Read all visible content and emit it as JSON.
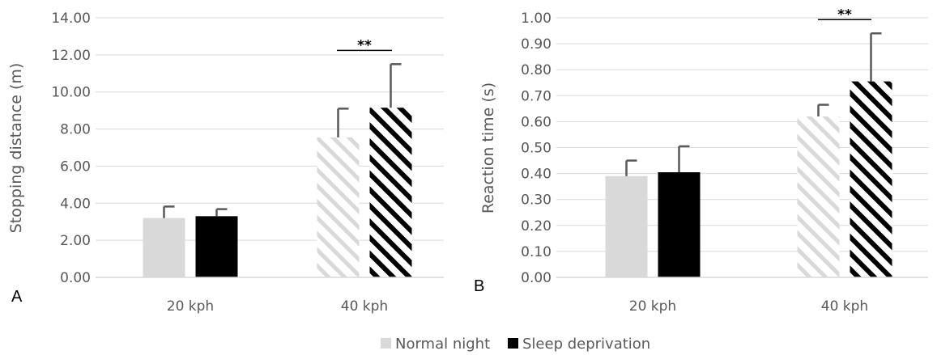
{
  "colors": {
    "normal": "#d9d9d9",
    "sleep": "#000000",
    "grid": "#d9d9d9",
    "error": "#595959"
  },
  "legend": {
    "position": "bottom",
    "items": [
      {
        "label": "Normal night",
        "color": "#d9d9d9"
      },
      {
        "label": "Sleep deprivation",
        "color": "#000000"
      }
    ]
  },
  "chart_data": [
    {
      "type": "bar",
      "panel_label": "A",
      "ylabel": "Stopping distance (m)",
      "categories": [
        "20 kph",
        "40 kph"
      ],
      "ylim": [
        0,
        14
      ],
      "ytick_step": 2,
      "ytick_decimals": 2,
      "grid": true,
      "series": [
        {
          "name": "Normal night",
          "values": [
            3.2,
            7.55
          ],
          "errors": [
            0.62,
            1.55
          ],
          "hatched": [
            false,
            true
          ]
        },
        {
          "name": "Sleep deprivation",
          "values": [
            3.3,
            9.15
          ],
          "errors": [
            0.38,
            2.35
          ],
          "hatched": [
            false,
            true
          ]
        }
      ],
      "annotations": [
        {
          "text": "**",
          "category_index": 1
        }
      ]
    },
    {
      "type": "bar",
      "panel_label": "B",
      "ylabel": "Reaction time (s)",
      "categories": [
        "20 kph",
        "40 kph"
      ],
      "ylim": [
        0,
        1
      ],
      "ytick_step": 0.1,
      "ytick_decimals": 2,
      "grid": true,
      "series": [
        {
          "name": "Normal night",
          "values": [
            0.39,
            0.62
          ],
          "errors": [
            0.06,
            0.045
          ],
          "hatched": [
            false,
            true
          ]
        },
        {
          "name": "Sleep deprivation",
          "values": [
            0.405,
            0.755
          ],
          "errors": [
            0.1,
            0.185
          ],
          "hatched": [
            false,
            true
          ]
        }
      ],
      "annotations": [
        {
          "text": "**",
          "category_index": 1
        }
      ]
    }
  ]
}
